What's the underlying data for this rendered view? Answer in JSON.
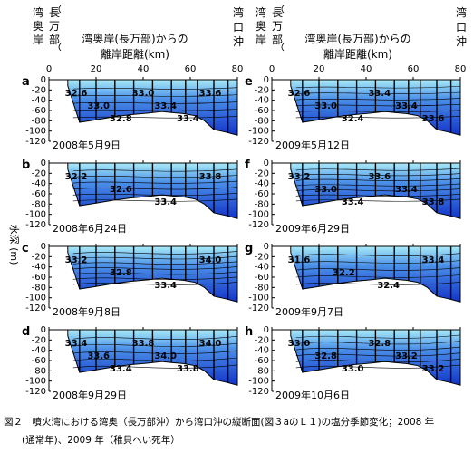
{
  "figure": {
    "caption_line1": "図２　噴火湾における湾奥（長万部沖）から湾口沖の縦断面(図３aのＬ１)の塩分季節変化；2008 年",
    "caption_line2": "(通常年)、2009 年（稚貝へい死年）",
    "y_axis_label": "水深 (m)",
    "x_axis_title_line1": "湾奥岸(長万部)からの",
    "x_axis_title_line2": "離岸距離(km)",
    "left_label_chars": [
      "湾",
      "奥",
      "岸",
      "長",
      "万",
      "部"
    ],
    "right_label_chars": [
      "湾",
      "口",
      "沖"
    ]
  },
  "colors": {
    "shallow": "#a9ecf8",
    "mid": "#4a8fe8",
    "deep": "#1233c8",
    "contour": "#000000",
    "tick_mark": "#000000"
  },
  "chart_data": {
    "type": "heatmap",
    "x": {
      "label": "湾奥岸(長万部)からの離岸距離(km)",
      "ticks": [
        0,
        20,
        40,
        60,
        80
      ],
      "range": [
        0,
        80
      ]
    },
    "y": {
      "label": "水深 (m)",
      "ticks": [
        0,
        -20,
        -40,
        -60,
        -80,
        -100,
        -120
      ],
      "range": [
        -120,
        0
      ]
    },
    "panels": [
      {
        "letter": "a",
        "date": "2008年5月9日",
        "contour_labels": [
          "32.6",
          "33.0",
          "32.8",
          "33.0",
          "33.4",
          "33.4",
          "33.6"
        ]
      },
      {
        "letter": "b",
        "date": "2008年6月24日",
        "contour_labels": [
          "32.2",
          "32.6",
          "33.4",
          "33.8"
        ]
      },
      {
        "letter": "c",
        "date": "2008年9月8日",
        "contour_labels": [
          "33.2",
          "32.8",
          "33.4",
          "34.0"
        ]
      },
      {
        "letter": "d",
        "date": "2008年9月29日",
        "contour_labels": [
          "33.4",
          "33.6",
          "33.4",
          "33.8",
          "34.0",
          "33.8",
          "34.0"
        ]
      },
      {
        "letter": "e",
        "date": "2009年5月12日",
        "contour_labels": [
          "32.6",
          "33.0",
          "32.4",
          "33.4",
          "33.4",
          "33.6"
        ]
      },
      {
        "letter": "f",
        "date": "2009年6月29日",
        "contour_labels": [
          "33.2",
          "33.0",
          "33.4",
          "33.6",
          "33.4",
          "33.8"
        ]
      },
      {
        "letter": "g",
        "date": "2009年9月7日",
        "contour_labels": [
          "31.6",
          "32.2",
          "32.4",
          "33.4"
        ]
      },
      {
        "letter": "h",
        "date": "2009年10月6日",
        "contour_labels": [
          "33.0",
          "32.8",
          "33.0",
          "32.8",
          "33.2",
          "33.2"
        ]
      }
    ]
  }
}
